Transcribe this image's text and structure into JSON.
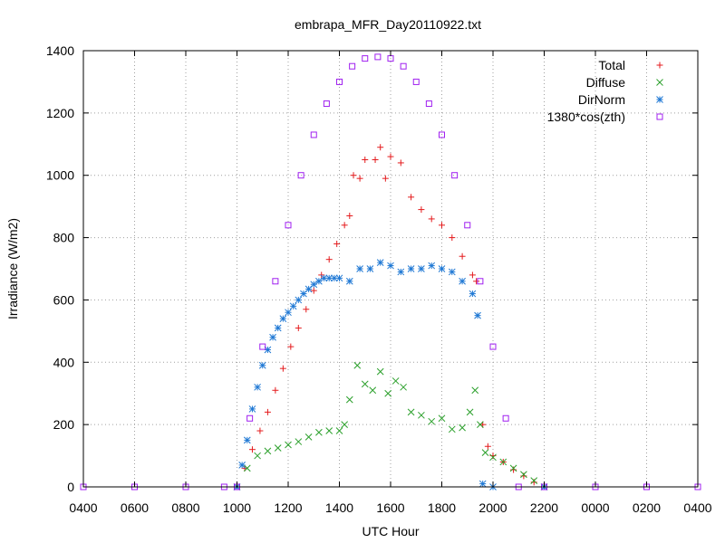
{
  "chart_data": {
    "type": "scatter",
    "title": "embrapa_MFR_Day20110922.txt",
    "xlabel": "UTC Hour",
    "ylabel": "Irradiance (W/m2)",
    "x_ticks": [
      "0400",
      "0600",
      "0800",
      "1000",
      "1200",
      "1400",
      "1600",
      "1800",
      "2000",
      "2200",
      "0000",
      "0200",
      "0400"
    ],
    "xlim_hours": [
      4,
      28
    ],
    "ylim": [
      0,
      1400
    ],
    "y_ticks": [
      0,
      200,
      400,
      600,
      800,
      1000,
      1200,
      1400
    ],
    "grid": true,
    "legend_position": "top-right",
    "series": [
      {
        "name": "Total",
        "marker": "plus",
        "color": "#e41a1c",
        "points": [
          [
            10.0,
            0
          ],
          [
            10.3,
            60
          ],
          [
            10.6,
            120
          ],
          [
            10.9,
            180
          ],
          [
            11.2,
            240
          ],
          [
            11.5,
            310
          ],
          [
            11.8,
            380
          ],
          [
            12.1,
            450
          ],
          [
            12.4,
            510
          ],
          [
            12.7,
            570
          ],
          [
            13.0,
            630
          ],
          [
            13.3,
            680
          ],
          [
            13.6,
            730
          ],
          [
            13.9,
            780
          ],
          [
            14.2,
            840
          ],
          [
            14.4,
            870
          ],
          [
            14.55,
            1000
          ],
          [
            14.8,
            990
          ],
          [
            15.0,
            1050
          ],
          [
            15.4,
            1050
          ],
          [
            15.6,
            1090
          ],
          [
            15.8,
            990
          ],
          [
            16.0,
            1060
          ],
          [
            16.4,
            1040
          ],
          [
            16.8,
            930
          ],
          [
            17.2,
            890
          ],
          [
            17.6,
            860
          ],
          [
            18.0,
            840
          ],
          [
            18.4,
            800
          ],
          [
            18.8,
            740
          ],
          [
            19.2,
            680
          ],
          [
            19.35,
            660
          ],
          [
            19.6,
            200
          ],
          [
            19.8,
            130
          ],
          [
            20.0,
            100
          ],
          [
            20.4,
            80
          ],
          [
            20.8,
            55
          ],
          [
            21.2,
            35
          ],
          [
            21.6,
            15
          ],
          [
            22.0,
            0
          ]
        ]
      },
      {
        "name": "Diffuse",
        "marker": "cross",
        "color": "#2ca02c",
        "points": [
          [
            10.0,
            0
          ],
          [
            10.4,
            60
          ],
          [
            10.8,
            100
          ],
          [
            11.2,
            115
          ],
          [
            11.6,
            125
          ],
          [
            12.0,
            135
          ],
          [
            12.4,
            145
          ],
          [
            12.8,
            160
          ],
          [
            13.2,
            175
          ],
          [
            13.6,
            180
          ],
          [
            14.0,
            180
          ],
          [
            14.2,
            200
          ],
          [
            14.4,
            280
          ],
          [
            14.7,
            390
          ],
          [
            15.0,
            330
          ],
          [
            15.3,
            310
          ],
          [
            15.6,
            370
          ],
          [
            15.9,
            300
          ],
          [
            16.2,
            340
          ],
          [
            16.5,
            320
          ],
          [
            16.8,
            240
          ],
          [
            17.2,
            230
          ],
          [
            17.6,
            210
          ],
          [
            18.0,
            220
          ],
          [
            18.4,
            185
          ],
          [
            18.8,
            190
          ],
          [
            19.1,
            240
          ],
          [
            19.3,
            310
          ],
          [
            19.5,
            200
          ],
          [
            19.7,
            110
          ],
          [
            20.0,
            95
          ],
          [
            20.4,
            80
          ],
          [
            20.8,
            60
          ],
          [
            21.2,
            40
          ],
          [
            21.6,
            20
          ],
          [
            22.0,
            0
          ]
        ]
      },
      {
        "name": "DirNorm",
        "marker": "star",
        "color": "#1f78d4",
        "points": [
          [
            10.0,
            0
          ],
          [
            10.2,
            70
          ],
          [
            10.4,
            150
          ],
          [
            10.6,
            250
          ],
          [
            10.8,
            320
          ],
          [
            11.0,
            390
          ],
          [
            11.2,
            440
          ],
          [
            11.4,
            480
          ],
          [
            11.6,
            510
          ],
          [
            11.8,
            540
          ],
          [
            12.0,
            560
          ],
          [
            12.2,
            580
          ],
          [
            12.4,
            600
          ],
          [
            12.6,
            620
          ],
          [
            12.8,
            635
          ],
          [
            13.0,
            650
          ],
          [
            13.2,
            660
          ],
          [
            13.4,
            670
          ],
          [
            13.6,
            670
          ],
          [
            13.8,
            670
          ],
          [
            14.0,
            670
          ],
          [
            14.4,
            660
          ],
          [
            14.8,
            700
          ],
          [
            15.2,
            700
          ],
          [
            15.6,
            720
          ],
          [
            16.0,
            710
          ],
          [
            16.4,
            690
          ],
          [
            16.8,
            700
          ],
          [
            17.2,
            700
          ],
          [
            17.6,
            710
          ],
          [
            18.0,
            700
          ],
          [
            18.4,
            690
          ],
          [
            18.8,
            660
          ],
          [
            19.2,
            620
          ],
          [
            19.4,
            550
          ],
          [
            19.6,
            10
          ],
          [
            20.0,
            0
          ],
          [
            22.0,
            0
          ]
        ]
      },
      {
        "name": "1380*cos(zth)",
        "marker": "square",
        "color": "#a020f0",
        "points": [
          [
            4,
            0
          ],
          [
            6,
            0
          ],
          [
            8,
            0
          ],
          [
            9.5,
            0
          ],
          [
            10.0,
            0
          ],
          [
            10.5,
            220
          ],
          [
            11.0,
            450
          ],
          [
            11.5,
            660
          ],
          [
            12.0,
            840
          ],
          [
            12.5,
            1000
          ],
          [
            13.0,
            1130
          ],
          [
            13.5,
            1230
          ],
          [
            14.0,
            1300
          ],
          [
            14.5,
            1350
          ],
          [
            15.0,
            1375
          ],
          [
            15.5,
            1380
          ],
          [
            16.0,
            1375
          ],
          [
            16.5,
            1350
          ],
          [
            17.0,
            1300
          ],
          [
            17.5,
            1230
          ],
          [
            18.0,
            1130
          ],
          [
            18.5,
            1000
          ],
          [
            19.0,
            840
          ],
          [
            19.5,
            660
          ],
          [
            20.0,
            450
          ],
          [
            20.5,
            220
          ],
          [
            21.0,
            0
          ],
          [
            22.0,
            0
          ],
          [
            24.0,
            0
          ],
          [
            26.0,
            0
          ],
          [
            28.0,
            0
          ]
        ]
      }
    ]
  }
}
